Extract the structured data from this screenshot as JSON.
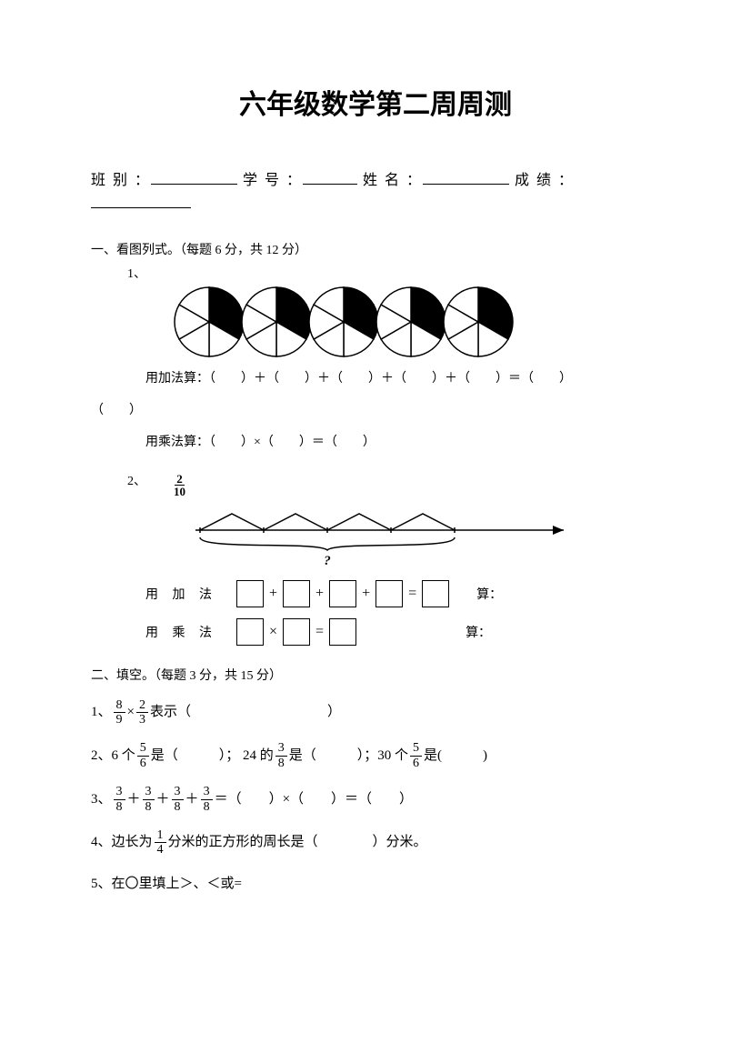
{
  "title": "六年级数学第二周周测",
  "info": {
    "class_label": "班 别 ：",
    "id_label": "学 号 ：",
    "name_label": "姓 名 ：",
    "score_label": "成 绩 ："
  },
  "section1": {
    "heading": "一、看图列式。（每题 6 分，共 12 分）",
    "q1_num": "1、",
    "pies": {
      "count": 5,
      "sectors": 6,
      "filled_sectors": 2,
      "fill_color": "#000000",
      "stroke_color": "#000000",
      "radius": 38
    },
    "q1_add": "用加法算：（　　）＋（　　）＋（　　）＋（　　）＋（　　）＝（　　）",
    "q1_mul": "用乘法算：（　　）×（　　）＝（　　）",
    "q2_num": "2、",
    "q2_frac_label": "2",
    "q2_frac_label_d": "10",
    "numberline": {
      "segments": 4,
      "arrow": true,
      "question_mark": "?"
    },
    "q2_add_label": "用 加 法",
    "q2_add_tail": "算：",
    "q2_mul_label": "用 乘 法",
    "q2_mul_tail": "算："
  },
  "section2": {
    "heading": "二、填空。（每题 3 分，共 15 分）",
    "q1_pre": "1、",
    "q1_f1n": "8",
    "q1_f1d": "9",
    "q1_op": "×",
    "q1_f2n": "2",
    "q1_f2d": "3",
    "q1_post": "表示（　　　　　　　　　　）",
    "q2_pre": "2、6 个",
    "q2_f1n": "5",
    "q2_f1d": "6",
    "q2_mid1": "是（　　　）； 24 的",
    "q2_f2n": "3",
    "q2_f2d": "8",
    "q2_mid2": "是（　　　）；30 个",
    "q2_f3n": "5",
    "q2_f3d": "6",
    "q2_post": "是(　　　)",
    "q3_pre": "3、",
    "q3_fn": "3",
    "q3_fd": "8",
    "q3_plus": "＋",
    "q3_post": "＝（　　）×（　　）＝（　　）",
    "q4_pre": "4、边长为",
    "q4_fn": "1",
    "q4_fd": "4",
    "q4_post": "分米的正方形的周长是（　　　　）分米。",
    "q5": "5、在〇里填上＞、＜或="
  },
  "styling": {
    "page_bg": "#ffffff",
    "text_color": "#000000",
    "title_fontsize": 30,
    "body_fontsize": 14
  }
}
